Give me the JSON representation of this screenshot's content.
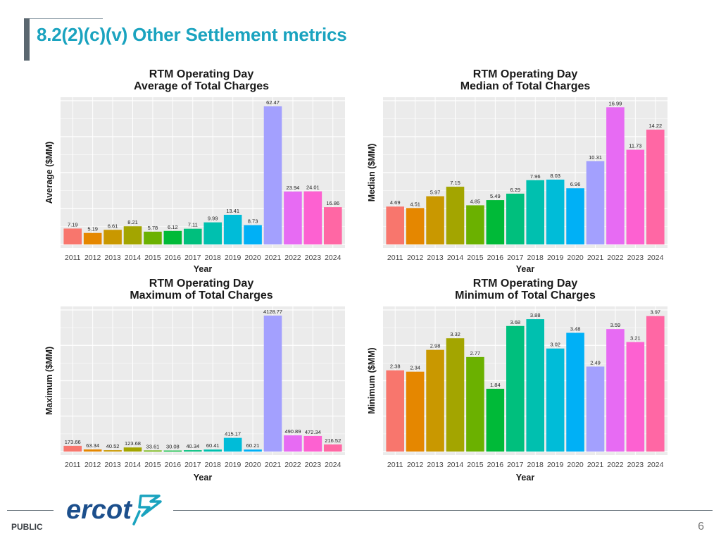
{
  "header": {
    "title": "8.2(2)(c)(v) Other Settlement metrics"
  },
  "footer": {
    "label": "PUBLIC",
    "page_number": "6",
    "logo_text": "ercot"
  },
  "colors": {
    "panel_bg": "#ebebeb",
    "grid": "#ffffff",
    "bars": [
      "#f8766d",
      "#e58700",
      "#c99800",
      "#a3a500",
      "#6bb100",
      "#00ba38",
      "#00bf7d",
      "#00c0af",
      "#00bcd8",
      "#00b0f6",
      "#a3a0fe",
      "#e76bf3",
      "#fd61d1",
      "#ff67a4"
    ],
    "brand_teal": "#1aa3bf",
    "logo_blue": "#1c4f8c"
  },
  "chart_data": [
    {
      "type": "bar",
      "title": "RTM Operating Day",
      "subtitle": "Average of Total Charges",
      "xlabel": "Year",
      "ylabel": "Average ($MM)",
      "categories": [
        "2011",
        "2012",
        "2013",
        "2014",
        "2015",
        "2016",
        "2017",
        "2018",
        "2019",
        "2020",
        "2021",
        "2022",
        "2023",
        "2024"
      ],
      "values": [
        7.19,
        5.19,
        6.61,
        8.21,
        5.78,
        6.12,
        7.11,
        9.99,
        13.41,
        8.73,
        62.47,
        23.94,
        24.01,
        16.86
      ],
      "labels": [
        "7.19",
        "5.19",
        "6.61",
        "8.21",
        "5.78",
        "6.12",
        "7.11",
        "9.99",
        "13.41",
        "8.73",
        "62.47",
        "23.94",
        "24.01",
        "16.86"
      ],
      "ylim": [
        0,
        65
      ],
      "grid": true,
      "legend": "none"
    },
    {
      "type": "bar",
      "title": "RTM Operating Day",
      "subtitle": "Median of Total Charges",
      "xlabel": "Year",
      "ylabel": "Median ($MM)",
      "categories": [
        "2011",
        "2012",
        "2013",
        "2014",
        "2015",
        "2016",
        "2017",
        "2018",
        "2019",
        "2020",
        "2021",
        "2022",
        "2023",
        "2024"
      ],
      "values": [
        4.69,
        4.51,
        5.97,
        7.15,
        4.85,
        5.49,
        6.29,
        7.96,
        8.03,
        6.96,
        10.31,
        16.99,
        11.73,
        14.22
      ],
      "labels": [
        "4.69",
        "4.51",
        "5.97",
        "7.15",
        "4.85",
        "5.49",
        "6.29",
        "7.96",
        "8.03",
        "6.96",
        "10.31",
        "16.99",
        "11.73",
        "14.22"
      ],
      "ylim": [
        0,
        17.8
      ],
      "grid": true,
      "legend": "none"
    },
    {
      "type": "bar",
      "title": "RTM Operating Day",
      "subtitle": "Maximum of Total Charges",
      "xlabel": "Year",
      "ylabel": "Maximum ($MM)",
      "categories": [
        "2011",
        "2012",
        "2013",
        "2014",
        "2015",
        "2016",
        "2017",
        "2018",
        "2019",
        "2020",
        "2021",
        "2022",
        "2023",
        "2024"
      ],
      "values": [
        173.66,
        63.34,
        40.52,
        123.68,
        33.61,
        30.08,
        40.34,
        60.41,
        415.17,
        60.21,
        4128.77,
        490.89,
        472.34,
        216.52
      ],
      "labels": [
        "173.66",
        "63.34",
        "40.52",
        "123.68",
        "33.61",
        "30.08",
        "40.34",
        "60.41",
        "415.17",
        "60.21",
        "4128.77",
        "490.89",
        "472.34",
        "216.52"
      ],
      "ylim": [
        0,
        4300
      ],
      "grid": true,
      "legend": "none"
    },
    {
      "type": "bar",
      "title": "RTM Operating Day",
      "subtitle": "Minimum of Total Charges",
      "xlabel": "Year",
      "ylabel": "Minimum ($MM)",
      "categories": [
        "2011",
        "2012",
        "2013",
        "2014",
        "2015",
        "2016",
        "2017",
        "2018",
        "2019",
        "2020",
        "2021",
        "2022",
        "2023",
        "2024"
      ],
      "values": [
        2.38,
        2.34,
        2.98,
        3.32,
        2.77,
        1.84,
        3.68,
        3.88,
        3.02,
        3.48,
        2.49,
        3.59,
        3.21,
        3.97
      ],
      "labels": [
        "2.38",
        "2.34",
        "2.98",
        "3.32",
        "2.77",
        "1.84",
        "3.68",
        "3.88",
        "3.02",
        "3.48",
        "2.49",
        "3.59",
        "3.21",
        "3.97"
      ],
      "ylim": [
        0,
        4.15
      ],
      "grid": true,
      "legend": "none"
    }
  ]
}
